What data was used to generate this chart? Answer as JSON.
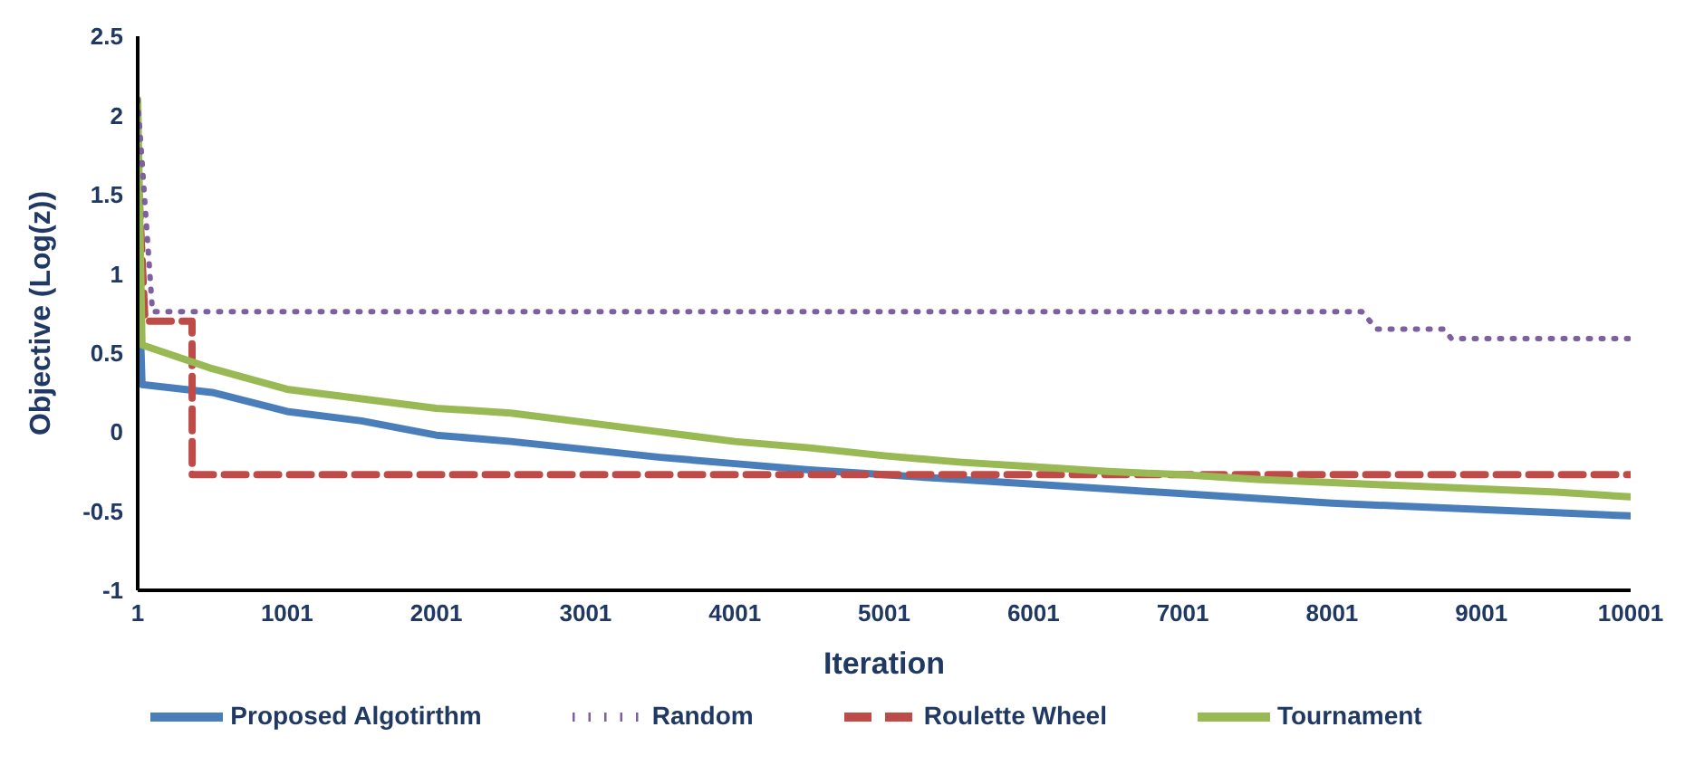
{
  "chart_data": {
    "type": "line",
    "xlabel": "Iteration",
    "ylabel": "Objective (Log(z))",
    "xlim": [
      1,
      10001
    ],
    "xticks": [
      1,
      1001,
      2001,
      3001,
      4001,
      5001,
      6001,
      7001,
      8001,
      9001,
      10001
    ],
    "ylim": [
      -1,
      2.5
    ],
    "yticks": [
      -1,
      -0.5,
      0,
      0.5,
      1,
      1.5,
      2,
      2.5
    ],
    "grid": false,
    "legend": "bottom",
    "marker": "none",
    "series": [
      {
        "name": "Proposed Algotirthm",
        "color": "#4a7ebb",
        "line_style": "solid",
        "x": [
          1,
          30,
          500,
          1001,
          1501,
          2001,
          2501,
          3001,
          3501,
          4001,
          4501,
          5001,
          5501,
          6001,
          6501,
          7001,
          7501,
          8001,
          8501,
          9001,
          9501,
          10001
        ],
        "values": [
          1.2,
          0.3,
          0.25,
          0.13,
          0.07,
          -0.02,
          -0.06,
          -0.11,
          -0.16,
          -0.2,
          -0.24,
          -0.27,
          -0.3,
          -0.33,
          -0.36,
          -0.39,
          -0.42,
          -0.45,
          -0.47,
          -0.49,
          -0.51,
          -0.53
        ]
      },
      {
        "name": "Roulette Wheel",
        "color": "#be4b48",
        "line_style": "dashed",
        "x": [
          1,
          50,
          365,
          366,
          10001
        ],
        "values": [
          1.7,
          0.7,
          0.7,
          -0.27,
          -0.27
        ]
      },
      {
        "name": "Tournament",
        "color": "#98b954",
        "line_style": "solid",
        "x": [
          1,
          30,
          500,
          1001,
          1501,
          2001,
          2501,
          3001,
          3501,
          4001,
          4501,
          5001,
          5501,
          6001,
          6501,
          7001,
          7501,
          8001,
          8501,
          9001,
          9501,
          10001
        ],
        "values": [
          2.1,
          0.55,
          0.4,
          0.27,
          0.21,
          0.15,
          0.12,
          0.06,
          0,
          -0.06,
          -0.1,
          -0.15,
          -0.19,
          -0.22,
          -0.25,
          -0.27,
          -0.3,
          -0.32,
          -0.34,
          -0.36,
          -0.38,
          -0.41
        ]
      },
      {
        "name": "Random",
        "color": "#7d60a0",
        "line_style": "dotted",
        "x": [
          1,
          100,
          8200,
          8300,
          8750,
          8800,
          10001
        ],
        "values": [
          2.1,
          0.76,
          0.76,
          0.65,
          0.65,
          0.59,
          0.59
        ]
      }
    ]
  }
}
